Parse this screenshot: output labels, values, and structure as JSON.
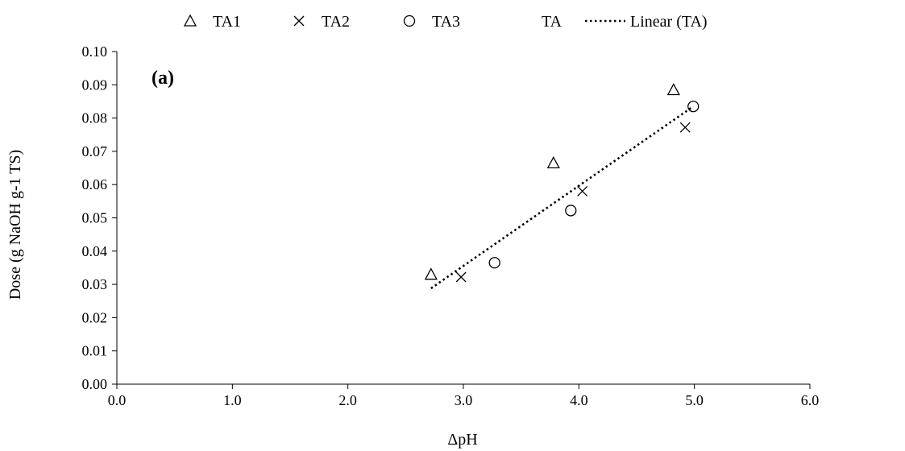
{
  "chart_data": {
    "type": "scatter",
    "panel_label": "(a)",
    "xlabel": "ΔpH",
    "ylabel": "Dose (g NaOH g-1 TS)",
    "xlim": [
      0,
      6
    ],
    "ylim": [
      0,
      0.1
    ],
    "x_ticks": [
      "0.0",
      "1.0",
      "2.0",
      "3.0",
      "4.0",
      "5.0",
      "6.0"
    ],
    "y_ticks": [
      "0.00",
      "0.01",
      "0.02",
      "0.03",
      "0.04",
      "0.05",
      "0.06",
      "0.07",
      "0.08",
      "0.09",
      "0.10"
    ],
    "grid": false,
    "legend_position": "top",
    "series": [
      {
        "name": "TA1",
        "marker": "triangle",
        "points": [
          [
            2.72,
            0.033
          ],
          [
            3.78,
            0.0665
          ],
          [
            4.82,
            0.0885
          ]
        ]
      },
      {
        "name": "TA2",
        "marker": "cross",
        "points": [
          [
            2.98,
            0.0322
          ],
          [
            4.03,
            0.058
          ],
          [
            4.92,
            0.0772
          ]
        ]
      },
      {
        "name": "TA3",
        "marker": "circle",
        "points": [
          [
            3.27,
            0.0365
          ],
          [
            3.93,
            0.0522
          ],
          [
            4.99,
            0.0835
          ]
        ]
      },
      {
        "name": "TA",
        "marker": "none",
        "points": []
      }
    ],
    "trendline": {
      "name": "Linear (TA)",
      "style": "dotted",
      "x_range": [
        2.72,
        4.99
      ],
      "y_range": [
        0.0288,
        0.0835
      ]
    }
  }
}
